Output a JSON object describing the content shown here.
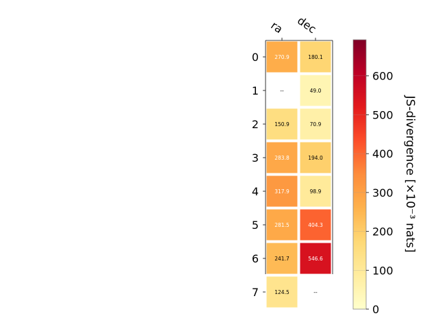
{
  "chart_data": {
    "type": "heatmap",
    "columns": [
      "ra",
      "dec"
    ],
    "rows": [
      "0",
      "1",
      "2",
      "3",
      "4",
      "5",
      "6",
      "7"
    ],
    "values": [
      [
        270.9,
        180.1
      ],
      [
        null,
        49.0
      ],
      [
        150.9,
        70.9
      ],
      [
        283.8,
        194.0
      ],
      [
        317.9,
        98.9
      ],
      [
        281.5,
        404.3
      ],
      [
        241.7,
        546.6
      ],
      [
        124.5,
        null
      ]
    ],
    "cell_labels": [
      [
        "270.9",
        "180.1"
      ],
      [
        "--",
        "49.0"
      ],
      [
        "150.9",
        "70.9"
      ],
      [
        "283.8",
        "194.0"
      ],
      [
        "317.9",
        "98.9"
      ],
      [
        "281.5",
        "404.3"
      ],
      [
        "241.7",
        "546.6"
      ],
      [
        "124.5",
        "--"
      ]
    ],
    "colorbar": {
      "label": "JS-divergence [×10⁻³ nats]",
      "ticks": [
        "0",
        "100",
        "200",
        "300",
        "400",
        "500",
        "600"
      ],
      "tick_values": [
        0,
        100,
        200,
        300,
        400,
        500,
        600
      ],
      "range": [
        0,
        693
      ],
      "colormap": "YlOrRd"
    },
    "cell_text_colors": {
      "light": "#000000",
      "dark": "#ffffff"
    },
    "title": "",
    "xlabel": "",
    "ylabel": ""
  }
}
